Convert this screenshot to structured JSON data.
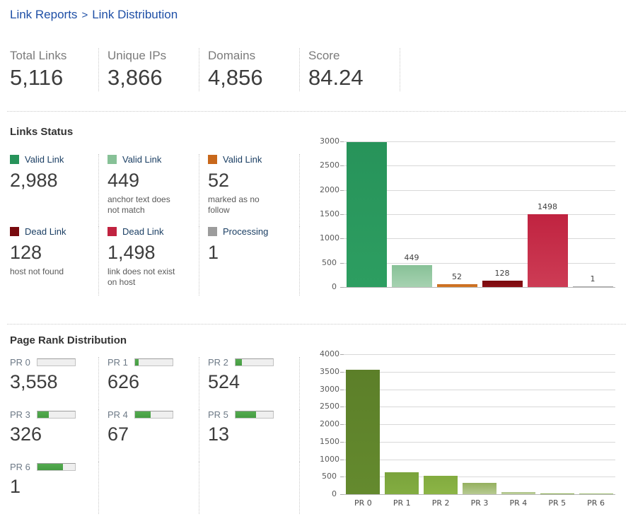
{
  "breadcrumb": {
    "section": "Link Reports",
    "separator": ">",
    "page": "Link Distribution"
  },
  "stats": [
    {
      "label": "Total Links",
      "value": "5,116"
    },
    {
      "label": "Unique IPs",
      "value": "3,866"
    },
    {
      "label": "Domains",
      "value": "4,856"
    },
    {
      "label": "Score",
      "value": "84.24"
    }
  ],
  "links_status": {
    "title": "Links Status",
    "items": [
      {
        "label": "Valid Link",
        "color": "#27935a",
        "value": "2,988",
        "caption": ""
      },
      {
        "label": "Valid Link",
        "color": "#87c197",
        "value": "449",
        "caption": "anchor text does not match"
      },
      {
        "label": "Valid Link",
        "color": "#c8681b",
        "value": "52",
        "caption": "marked as no follow"
      },
      {
        "label": "Dead Link",
        "color": "#780a0e",
        "value": "128",
        "caption": "host not found"
      },
      {
        "label": "Dead Link",
        "color": "#c02340",
        "value": "1,498",
        "caption": "link does not exist on host"
      },
      {
        "label": "Processing",
        "color": "#9c9c9c",
        "value": "1",
        "caption": ""
      }
    ]
  },
  "page_rank": {
    "title": "Page Rank Distribution",
    "items": [
      {
        "label": "PR 0",
        "value": "3,558",
        "meter_pct": 0
      },
      {
        "label": "PR 1",
        "value": "626",
        "meter_pct": 10
      },
      {
        "label": "PR 2",
        "value": "524",
        "meter_pct": 18
      },
      {
        "label": "PR 3",
        "value": "326",
        "meter_pct": 30
      },
      {
        "label": "PR 4",
        "value": "67",
        "meter_pct": 42
      },
      {
        "label": "PR 5",
        "value": "13",
        "meter_pct": 55
      },
      {
        "label": "PR 6",
        "value": "1",
        "meter_pct": 68
      }
    ]
  },
  "chart_data": [
    {
      "type": "bar",
      "title": "Links Status",
      "categories": [
        "Valid Link",
        "Valid Link (anchor text does not match)",
        "Valid Link (marked as no follow)",
        "Dead Link (host not found)",
        "Dead Link (link does not exist on host)",
        "Processing"
      ],
      "values": [
        2988,
        449,
        52,
        128,
        1498,
        1
      ],
      "bar_labels": [
        "",
        "449",
        "52",
        "128",
        "1498",
        "1"
      ],
      "colors": [
        "#27935a",
        "#87c197",
        "#c8681b",
        "#780a0e",
        "#c02340",
        "#a0a0a0"
      ],
      "colors2": [
        "#2d9e61",
        "#a6d2b1",
        "#d47b2a",
        "#8c1014",
        "#cd3c55",
        "#b0b0b0"
      ],
      "ylim": [
        0,
        3000
      ],
      "ytick_step": 500,
      "grid": true,
      "legend_position": "none",
      "show_x_labels": false
    },
    {
      "type": "bar",
      "title": "Page Rank Distribution",
      "categories": [
        "PR 0",
        "PR 1",
        "PR 2",
        "PR 3",
        "PR 4",
        "PR 5",
        "PR 6"
      ],
      "values": [
        3558,
        626,
        524,
        326,
        67,
        13,
        1
      ],
      "bar_labels": [
        "",
        "",
        "",
        "",
        "",
        "",
        ""
      ],
      "colors": [
        "#5c7f29",
        "#7aa33c",
        "#82ab3f",
        "#94b05e",
        "#aec489",
        "#7da441",
        "#9dbb70"
      ],
      "colors2": [
        "#648a2e",
        "#83ad41",
        "#8cb546",
        "#b7ca92",
        "#bdd09b",
        "#8db054",
        "#a8c47e"
      ],
      "ylim": [
        0,
        4000
      ],
      "ytick_step": 500,
      "grid": true,
      "legend_position": "none",
      "show_x_labels": true
    }
  ]
}
